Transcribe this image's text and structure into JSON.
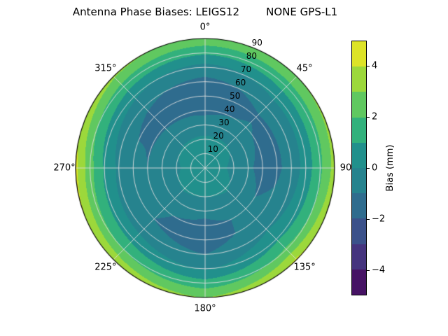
{
  "title": "Antenna Phase Biases: LEIGS12        NONE GPS-L1",
  "chart_data": {
    "type": "heatmap",
    "projection": "polar",
    "title": "Antenna Phase Biases: LEIGS12        NONE GPS-L1",
    "theta_zero": "top",
    "theta_direction": "clockwise",
    "angle_ticks_deg": [
      0,
      45,
      90,
      135,
      180,
      225,
      270,
      315
    ],
    "angle_tick_labels": [
      "0°",
      "45°",
      "90",
      "135°",
      "180°",
      "225°",
      "270°",
      "315°"
    ],
    "radial_ticks": [
      10,
      20,
      30,
      40,
      50,
      60,
      70,
      80,
      90
    ],
    "radial_tick_labels": [
      "10",
      "20",
      "30",
      "40",
      "50",
      "60",
      "70",
      "80",
      "90"
    ],
    "radial_max": 90,
    "rlabel_angle_deg": 22.5,
    "grid_color": "#dedede",
    "spine_color": "#000000",
    "colormap": "viridis",
    "viridis_stops": [
      "#440154",
      "#482878",
      "#3e4989",
      "#31688e",
      "#26828e",
      "#21918c",
      "#35b779",
      "#6ece58",
      "#b5de2b",
      "#fde725"
    ],
    "levels": [
      -5,
      -4,
      -3,
      -2,
      -1,
      0,
      1,
      2,
      3,
      4,
      5
    ],
    "center_value": 0.3,
    "azimuths_deg": [
      0,
      45,
      90,
      135,
      180,
      225,
      270,
      315
    ],
    "elevation_rings": [
      10,
      20,
      30,
      40,
      50,
      60,
      70,
      80,
      90
    ],
    "values_note": "Bias (mm) estimated from colors at each azimuth ring node, center to edge",
    "values": [
      [
        0.3,
        0.2,
        -0.6,
        -1.2,
        -1.6,
        -1.3,
        -0.4,
        1.2,
        2.8
      ],
      [
        0.3,
        0.1,
        -0.4,
        -0.9,
        -1.1,
        -0.7,
        0.3,
        1.5,
        3.0
      ],
      [
        0.2,
        -0.2,
        -0.8,
        -1.4,
        -1.2,
        -0.6,
        0.4,
        1.8,
        3.4
      ],
      [
        0.3,
        0.1,
        -0.3,
        -0.8,
        -0.6,
        -0.1,
        0.8,
        2.2,
        4.2
      ],
      [
        0.3,
        0.0,
        -0.7,
        -1.3,
        -1.5,
        -1.0,
        -0.1,
        1.4,
        3.0
      ],
      [
        0.3,
        0.1,
        -0.4,
        -0.9,
        -1.0,
        -0.5,
        0.6,
        2.0,
        3.8
      ],
      [
        0.2,
        -0.1,
        -0.6,
        -1.0,
        -0.7,
        -0.2,
        0.9,
        2.4,
        4.3
      ],
      [
        0.3,
        0.1,
        -0.5,
        -1.1,
        -1.3,
        -0.8,
        0.2,
        1.6,
        3.2
      ]
    ],
    "colorbar": {
      "label": "Bias (mm)",
      "range": [
        -5,
        5
      ],
      "ticks": [
        4,
        2,
        0,
        -2,
        -4
      ],
      "tick_labels": [
        "4",
        "2",
        "0",
        "−2",
        "−4"
      ]
    }
  }
}
